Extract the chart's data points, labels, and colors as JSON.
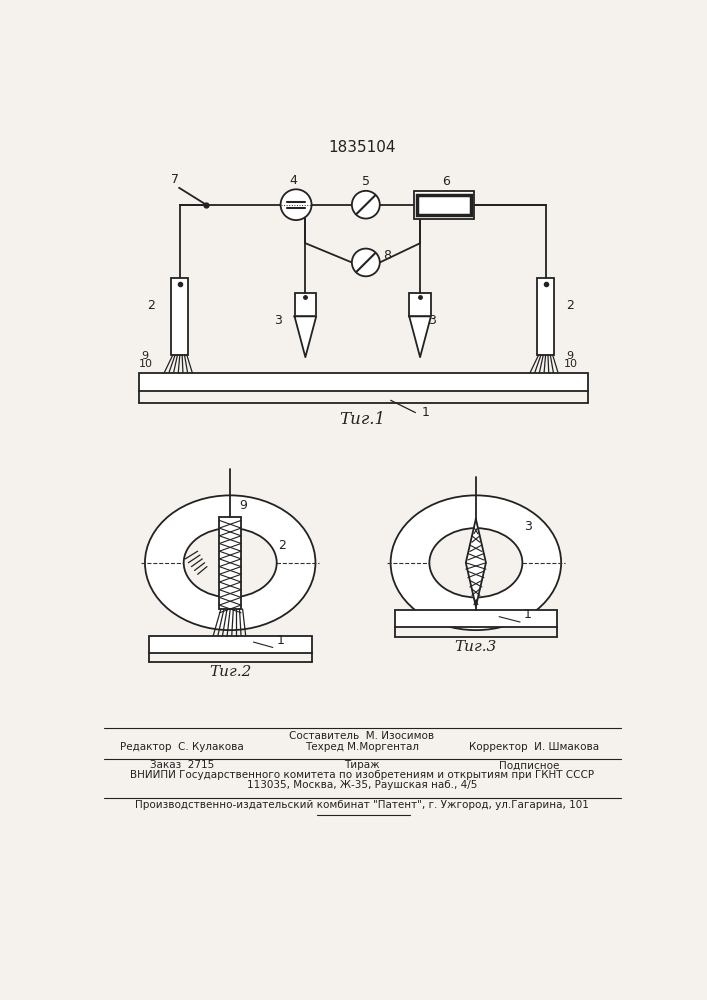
{
  "bg_color": "#f5f2ee",
  "patent_number": "1835104",
  "fig1_label": "Τиг.1",
  "fig2_label": "Τиг.2",
  "fig3_label": "Τиг.3",
  "footer_line1_left": "Редактор  С. Кулакова",
  "footer_line1_mid": "Составитель  М. Изосимов",
  "footer_line2_mid": "Техред М.Моргентал",
  "footer_line2_right": "Корректор  И. Шмакова",
  "footer_order": "Заказ  2715",
  "footer_tirazh": "Тираж",
  "footer_podpisnoe": "Подписное",
  "footer_vniipи": "ВНИИПИ Государственного комитета по изобретениям и открытиям при ГКНТ СССР",
  "footer_address": "113035, Москва, Ж-35, Раушская наб., 4/5",
  "footer_production": "Производственно-издательский комбинат \"Патент\", г. Ужгород, ул.Гагарина, 101"
}
